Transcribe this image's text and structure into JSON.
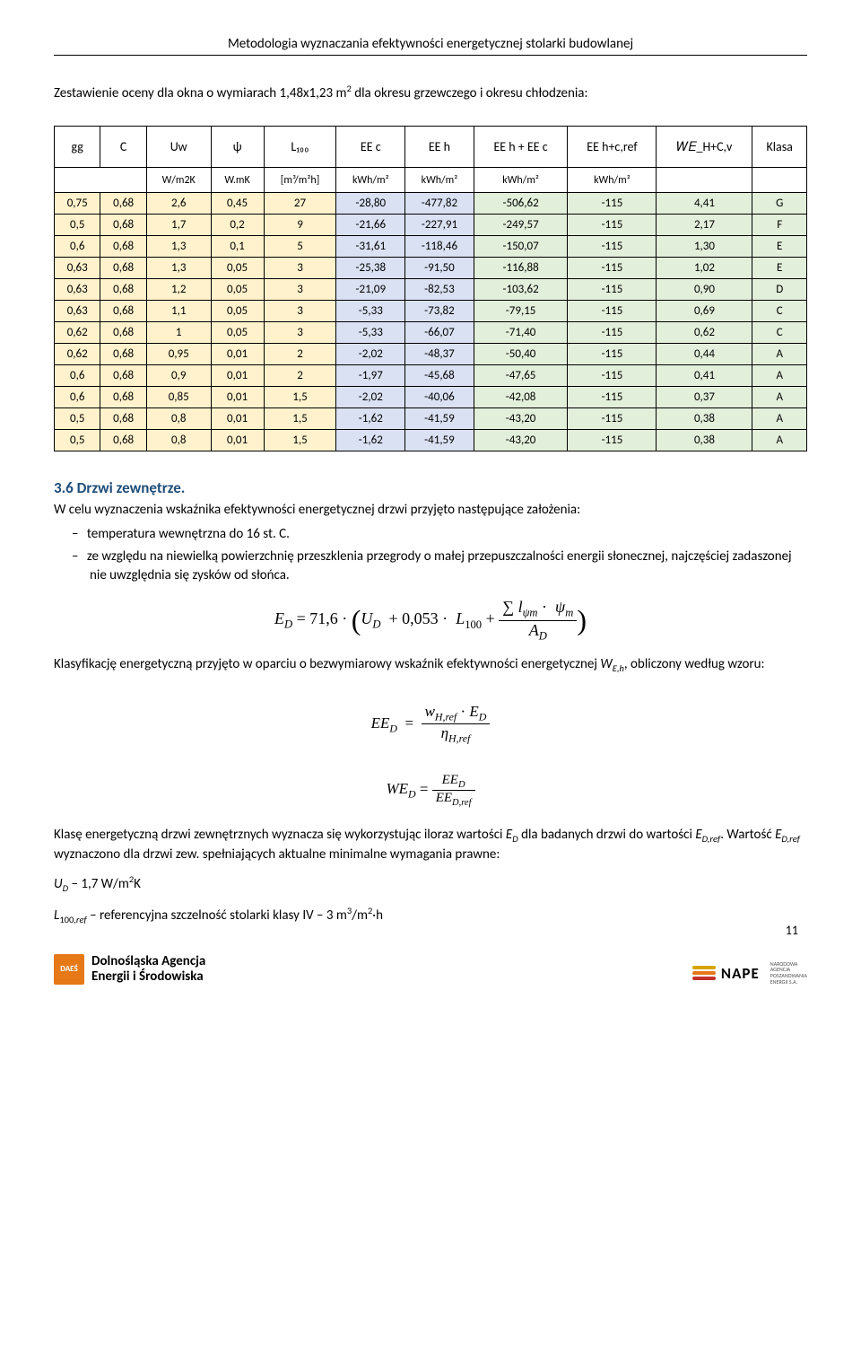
{
  "header": "Metodologia wyznaczania efektywności energetycznej stolarki budowlanej",
  "intro": "Zestawienie oceny dla okna o wymiarach 1,48x1,23 m² dla okresu grzewczego i okresu chłodzenia:",
  "table": {
    "header1": [
      "gg",
      "C",
      "Uw",
      "ψ",
      "L₁₀₀",
      "EE c",
      "EE h",
      "EE h + EE c",
      "EE h+c,ref",
      "𝑊𝐸_H+C,v",
      "Klasa"
    ],
    "header2": [
      "",
      "W/m2K",
      "W.mK",
      "[m³/m²h]",
      "kWh/m²",
      "kWh/m²",
      "kWh/m²",
      "kWh/m²",
      "",
      ""
    ],
    "col_bg": [
      "bg-yellow",
      "bg-yellow",
      "bg-yellow",
      "bg-yellow",
      "bg-yellow",
      "bg-blue",
      "bg-blue",
      "bg-green",
      "bg-green",
      "bg-green",
      "bg-green"
    ],
    "rows": [
      [
        "0,75",
        "0,68",
        "2,6",
        "0,45",
        "27",
        "-28,80",
        "-477,82",
        "-506,62",
        "-115",
        "4,41",
        "G"
      ],
      [
        "0,5",
        "0,68",
        "1,7",
        "0,2",
        "9",
        "-21,66",
        "-227,91",
        "-249,57",
        "-115",
        "2,17",
        "F"
      ],
      [
        "0,6",
        "0,68",
        "1,3",
        "0,1",
        "5",
        "-31,61",
        "-118,46",
        "-150,07",
        "-115",
        "1,30",
        "E"
      ],
      [
        "0,63",
        "0,68",
        "1,3",
        "0,05",
        "3",
        "-25,38",
        "-91,50",
        "-116,88",
        "-115",
        "1,02",
        "E"
      ],
      [
        "0,63",
        "0,68",
        "1,2",
        "0,05",
        "3",
        "-21,09",
        "-82,53",
        "-103,62",
        "-115",
        "0,90",
        "D"
      ],
      [
        "0,63",
        "0,68",
        "1,1",
        "0,05",
        "3",
        "-5,33",
        "-73,82",
        "-79,15",
        "-115",
        "0,69",
        "C"
      ],
      [
        "0,62",
        "0,68",
        "1",
        "0,05",
        "3",
        "-5,33",
        "-66,07",
        "-71,40",
        "-115",
        "0,62",
        "C"
      ],
      [
        "0,62",
        "0,68",
        "0,95",
        "0,01",
        "2",
        "-2,02",
        "-48,37",
        "-50,40",
        "-115",
        "0,44",
        "A"
      ],
      [
        "0,6",
        "0,68",
        "0,9",
        "0,01",
        "2",
        "-1,97",
        "-45,68",
        "-47,65",
        "-115",
        "0,41",
        "A"
      ],
      [
        "0,6",
        "0,68",
        "0,85",
        "0,01",
        "1,5",
        "-2,02",
        "-40,06",
        "-42,08",
        "-115",
        "0,37",
        "A"
      ],
      [
        "0,5",
        "0,68",
        "0,8",
        "0,01",
        "1,5",
        "-1,62",
        "-41,59",
        "-43,20",
        "-115",
        "0,38",
        "A"
      ],
      [
        "0,5",
        "0,68",
        "0,8",
        "0,01",
        "1,5",
        "-1,62",
        "-41,59",
        "-43,20",
        "-115",
        "0,38",
        "A"
      ]
    ]
  },
  "section36": {
    "title": "3.6 Drzwi zewnętrze.",
    "p1": "W celu wyznaczenia wskaźnika efektywności energetycznej drzwi przyjęto następujące założenia:",
    "bullets": [
      "temperatura wewnętrzna  do 16 st. C.",
      "ze względu na niewielką powierzchnię przeszklenia przegrody o małej przepuszczalności energii słonecznej, najczęściej zadaszonej nie uwzględnia się zysków od słońca."
    ],
    "p2_a": "Klasyfikację energetyczną przyjęto w oparciu o bezwymiarowy wskaźnik efektywności energetycznej ",
    "p2_b": ", obliczony według wzoru:",
    "p3_a": "Klasę energetyczną drzwi zewnętrznych wyznacza się wykorzystując iloraz wartości ",
    "p3_b": " dla badanych drzwi do wartości ",
    "p3_c": ". Wartość ",
    "p3_d": " wyznaczono dla drzwi zew. spełniających aktualne minimalne wymagania prawne:",
    "ud_line_a": " – 1,7  W/m",
    "ud_line_b": "K",
    "l100_a": " – referencyjna szczelność stolarki klasy IV – 3 m",
    "l100_b": "/m",
    "l100_c": "·h"
  },
  "footer": {
    "daes_mark": "DAEŚ",
    "daes_line1": "Dolnośląska Agencja",
    "daes_line2": "Energii i Środowiska",
    "nape": "NAPE",
    "nape_small1": "NARODOWA",
    "nape_small2": "AGENCJA",
    "nape_small3": "POSZANOWANIA",
    "nape_small4": "ENERGII S.A.",
    "nape_colors": [
      "#d6a400",
      "#e67817",
      "#c2302a"
    ],
    "page_num": "11"
  }
}
